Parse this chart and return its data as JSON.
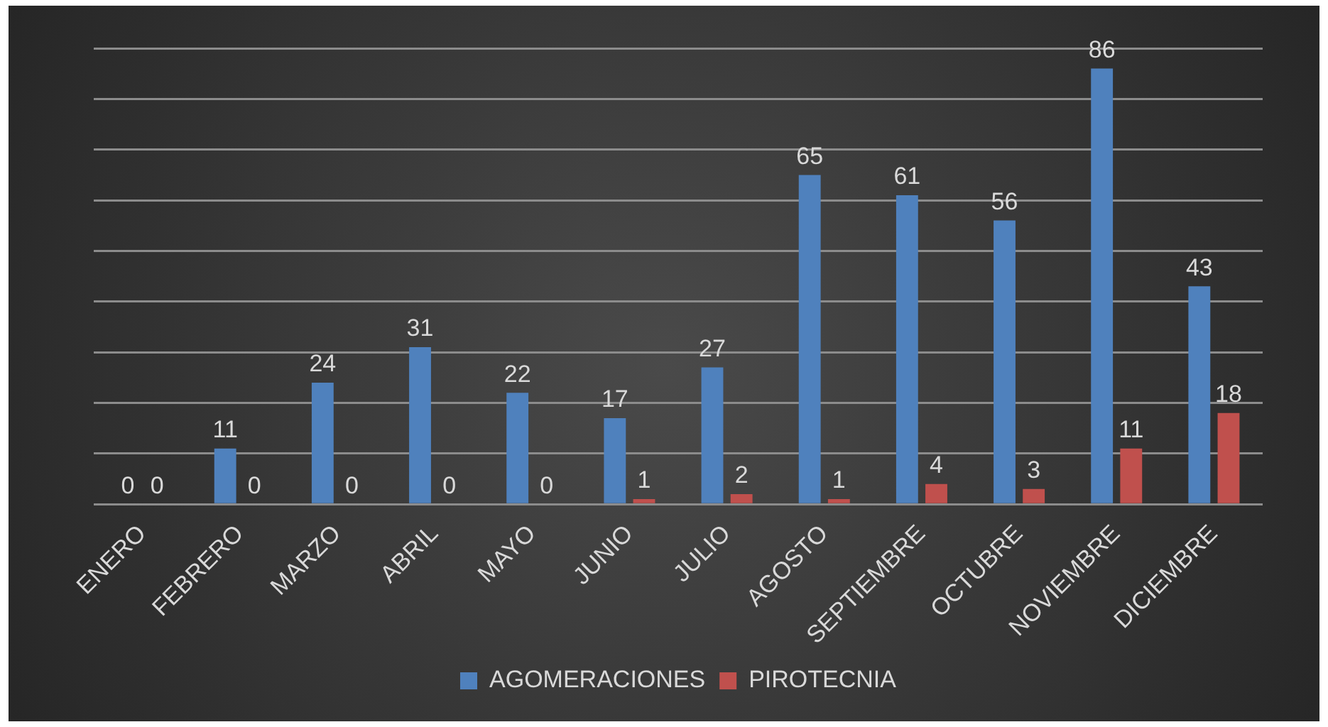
{
  "chart_data": {
    "type": "bar",
    "categories": [
      "ENERO",
      "FEBRERO",
      "MARZO",
      "ABRIL",
      "MAYO",
      "JUNIO",
      "JULIO",
      "AGOSTO",
      "SEPTIEMBRE",
      "OCTUBRE",
      "NOVIEMBRE",
      "DICIEMBRE"
    ],
    "series": [
      {
        "name": "AGOMERACIONES",
        "color": "#4f81bd",
        "values": [
          0,
          11,
          24,
          31,
          22,
          17,
          27,
          65,
          61,
          56,
          86,
          43
        ]
      },
      {
        "name": "PIROTECNIA",
        "color": "#c0504d",
        "values": [
          0,
          0,
          0,
          0,
          0,
          1,
          2,
          1,
          4,
          3,
          11,
          18
        ]
      }
    ],
    "ylim": [
      0,
      90
    ],
    "yticks": [
      {
        "value": 0,
        "label": null
      },
      {
        "value": 10,
        "label": null
      },
      {
        "value": 20,
        "label": null
      },
      {
        "value": 30,
        "label": null
      },
      {
        "value": 40,
        "label": null
      },
      {
        "value": 50,
        "label": null
      },
      {
        "value": 60,
        "label": null
      },
      {
        "value": 70,
        "label": null
      },
      {
        "value": 80,
        "label": null
      },
      {
        "value": 90,
        "label": null
      }
    ],
    "tick_labels": "x",
    "grid": "y",
    "legend": "bottom",
    "data_labels": true
  }
}
